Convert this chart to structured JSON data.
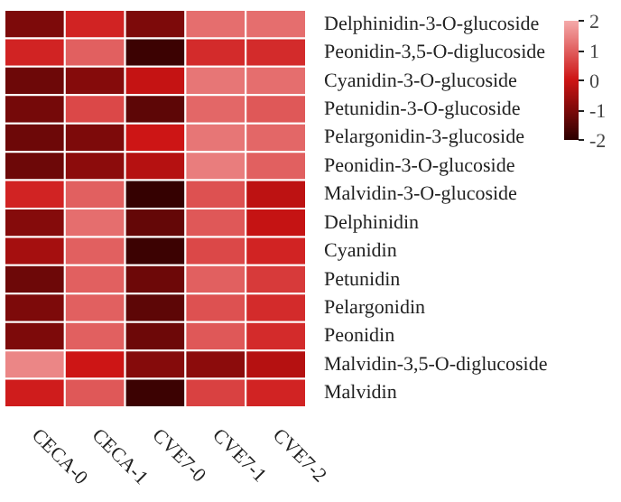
{
  "chart_data": {
    "type": "heatmap",
    "categories": [
      "CECA-0",
      "CECA-1",
      "CVE7-0",
      "CVE7-1",
      "CVE7-2"
    ],
    "y_categories": [
      "Delphinidin-3-O-glucoside",
      "Peonidin-3,5-O-diglucoside",
      "Cyanidin-3-O-glucoside",
      "Petunidin-3-O-glucoside",
      "Pelargonidin-3-glucoside",
      "Peonidin-3-O-glucoside",
      "Malvidin-3-O-glucoside",
      "Delphinidin",
      "Cyanidin",
      "Petunidin",
      "Pelargonidin",
      "Peonidin",
      "Malvidin-3,5-O-diglucoside",
      "Malvidin"
    ],
    "cells": [
      [
        -1.0,
        0.2,
        -1.0,
        1.2,
        1.2
      ],
      [
        0.2,
        1.0,
        -1.8,
        0.3,
        0.3
      ],
      [
        -1.2,
        -0.9,
        -0.1,
        1.3,
        1.2
      ],
      [
        -1.1,
        0.7,
        -1.4,
        1.1,
        0.9
      ],
      [
        -1.2,
        -1.0,
        0.0,
        1.3,
        1.1
      ],
      [
        -1.2,
        -0.8,
        -0.3,
        1.4,
        1.0
      ],
      [
        0.2,
        1.0,
        -1.9,
        0.8,
        -0.2
      ],
      [
        -0.9,
        1.2,
        -1.3,
        0.9,
        -0.1
      ],
      [
        -0.5,
        1.0,
        -1.8,
        0.7,
        0.2
      ],
      [
        -1.2,
        1.0,
        -1.2,
        1.0,
        0.5
      ],
      [
        -1.0,
        1.0,
        -1.4,
        0.8,
        0.3
      ],
      [
        -1.0,
        1.0,
        -1.2,
        0.9,
        0.3
      ],
      [
        1.5,
        0.0,
        -0.9,
        -0.8,
        -0.3
      ],
      [
        0.1,
        0.9,
        -1.8,
        0.6,
        0.2
      ]
    ],
    "clim": [
      -2,
      2
    ],
    "cticks": [
      -2,
      -1,
      0,
      1,
      2
    ]
  }
}
